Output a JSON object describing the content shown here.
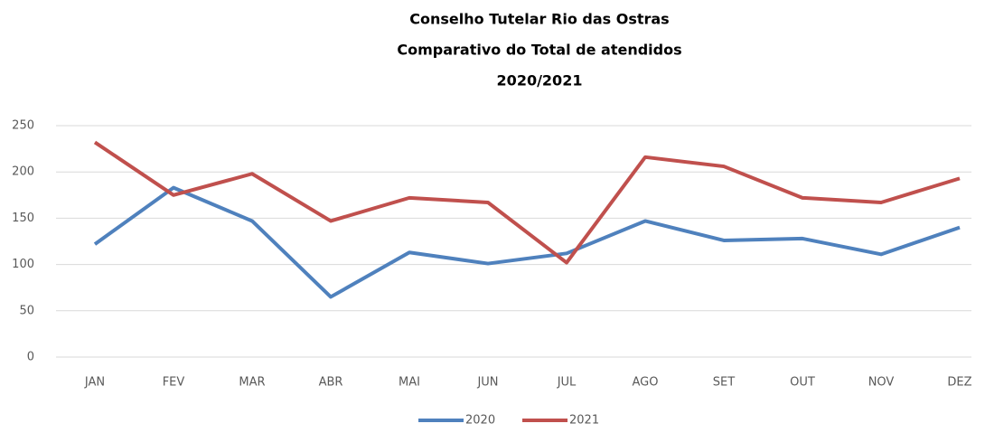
{
  "chart_data": {
    "type": "line",
    "title": [
      "Conselho Tutelar Rio das Ostras",
      "Comparativo do Total de atendidos",
      "2020/2021"
    ],
    "categories": [
      "JAN",
      "FEV",
      "MAR",
      "ABR",
      "MAI",
      "JUN",
      "JUL",
      "AGO",
      "SET",
      "OUT",
      "NOV",
      "DEZ"
    ],
    "series": [
      {
        "name": "2020",
        "color": "#4f81bd",
        "values": [
          122,
          183,
          147,
          65,
          113,
          101,
          112,
          147,
          126,
          128,
          111,
          140
        ]
      },
      {
        "name": "2021",
        "color": "#c0504d",
        "values": [
          232,
          175,
          198,
          147,
          172,
          167,
          102,
          216,
          206,
          172,
          167,
          193
        ]
      }
    ],
    "ylim": [
      0,
      250
    ],
    "yticks": [
      0,
      50,
      100,
      150,
      200,
      250
    ],
    "grid": true,
    "legend": "bottom"
  }
}
